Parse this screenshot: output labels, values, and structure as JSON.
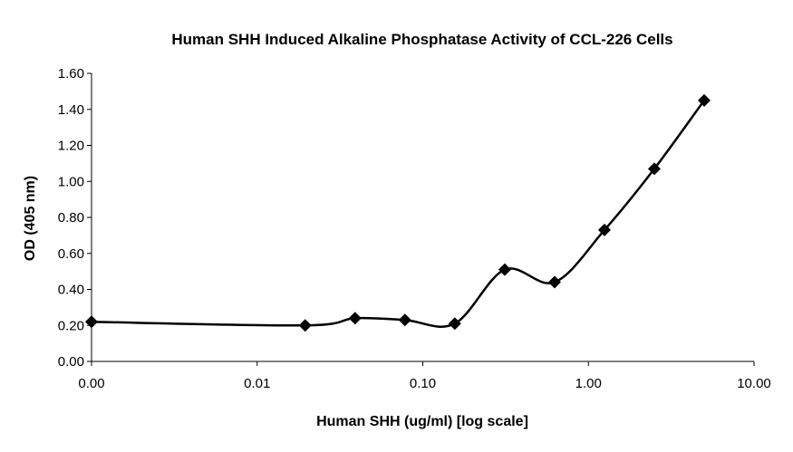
{
  "chart_data": {
    "type": "line",
    "title": "Human SHH Induced Alkaline Phosphatase Activity of CCL-226 Cells",
    "xlabel": "Human SHH (ug/ml) [log scale]",
    "ylabel": "OD (405 nm)",
    "x_scale": "log",
    "xlim": [
      0.001,
      10
    ],
    "ylim": [
      0,
      1.6
    ],
    "x_ticks": [
      0.001,
      0.01,
      0.1,
      1,
      10
    ],
    "x_tick_labels": [
      "0.00",
      "0.01",
      "0.10",
      "1.00",
      "10.00"
    ],
    "y_ticks": [
      0,
      0.2,
      0.4,
      0.6,
      0.8,
      1.0,
      1.2,
      1.4,
      1.6
    ],
    "y_tick_labels": [
      "0.00",
      "0.20",
      "0.40",
      "0.60",
      "0.80",
      "1.00",
      "1.20",
      "1.40",
      "1.60"
    ],
    "grid": false,
    "legend": "none",
    "line_color": "#000000",
    "marker": "diamond",
    "smooth": true,
    "series": [
      {
        "x": [
          0.001,
          0.0195,
          0.039,
          0.078,
          0.156,
          0.3125,
          0.625,
          1.25,
          2.5,
          5.0
        ],
        "y": [
          0.22,
          0.2,
          0.24,
          0.23,
          0.21,
          0.51,
          0.44,
          0.73,
          1.07,
          1.45
        ]
      }
    ]
  }
}
